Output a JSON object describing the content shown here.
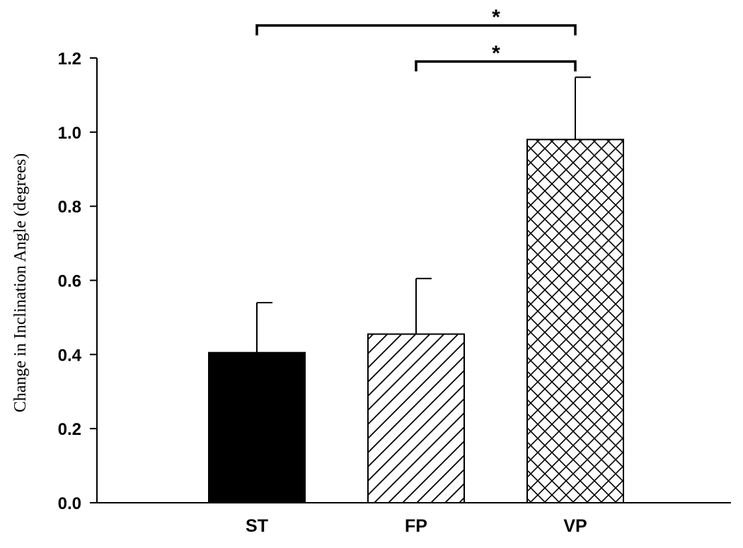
{
  "chart_data": {
    "type": "bar",
    "categories": [
      "ST",
      "FP",
      "VP"
    ],
    "values": [
      0.405,
      0.455,
      0.98
    ],
    "error_upper": [
      0.54,
      0.605,
      1.148
    ],
    "fills": [
      "solid",
      "diagonal",
      "crosshatch"
    ],
    "ylabel": "Change in Inclination Angle (degrees)",
    "xlabel": "",
    "ylim": [
      0.0,
      1.2
    ],
    "yticks": [
      "0.0",
      "0.2",
      "0.4",
      "0.6",
      "0.8",
      "1.0",
      "1.2"
    ],
    "grid": false,
    "legend": "none",
    "significance": [
      {
        "from": "ST",
        "to": "VP",
        "label": "*"
      },
      {
        "from": "FP",
        "to": "VP",
        "label": "*"
      }
    ],
    "colors": {
      "bar_outline": "#000000",
      "axis": "#000000",
      "background": "#ffffff"
    }
  }
}
